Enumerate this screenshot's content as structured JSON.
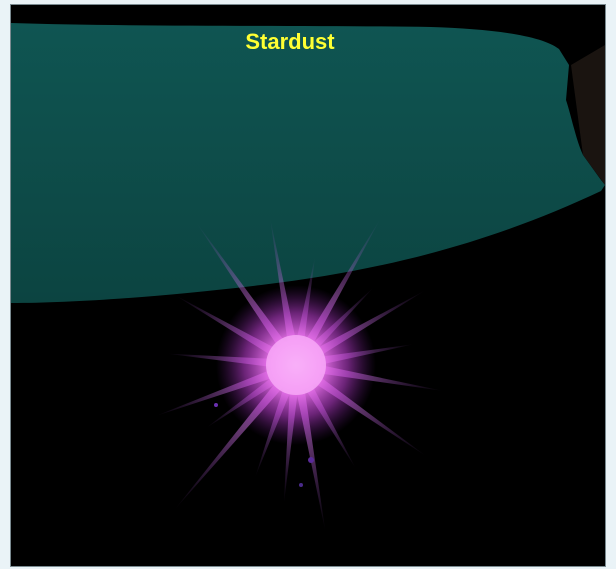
{
  "label": "Stardust"
}
